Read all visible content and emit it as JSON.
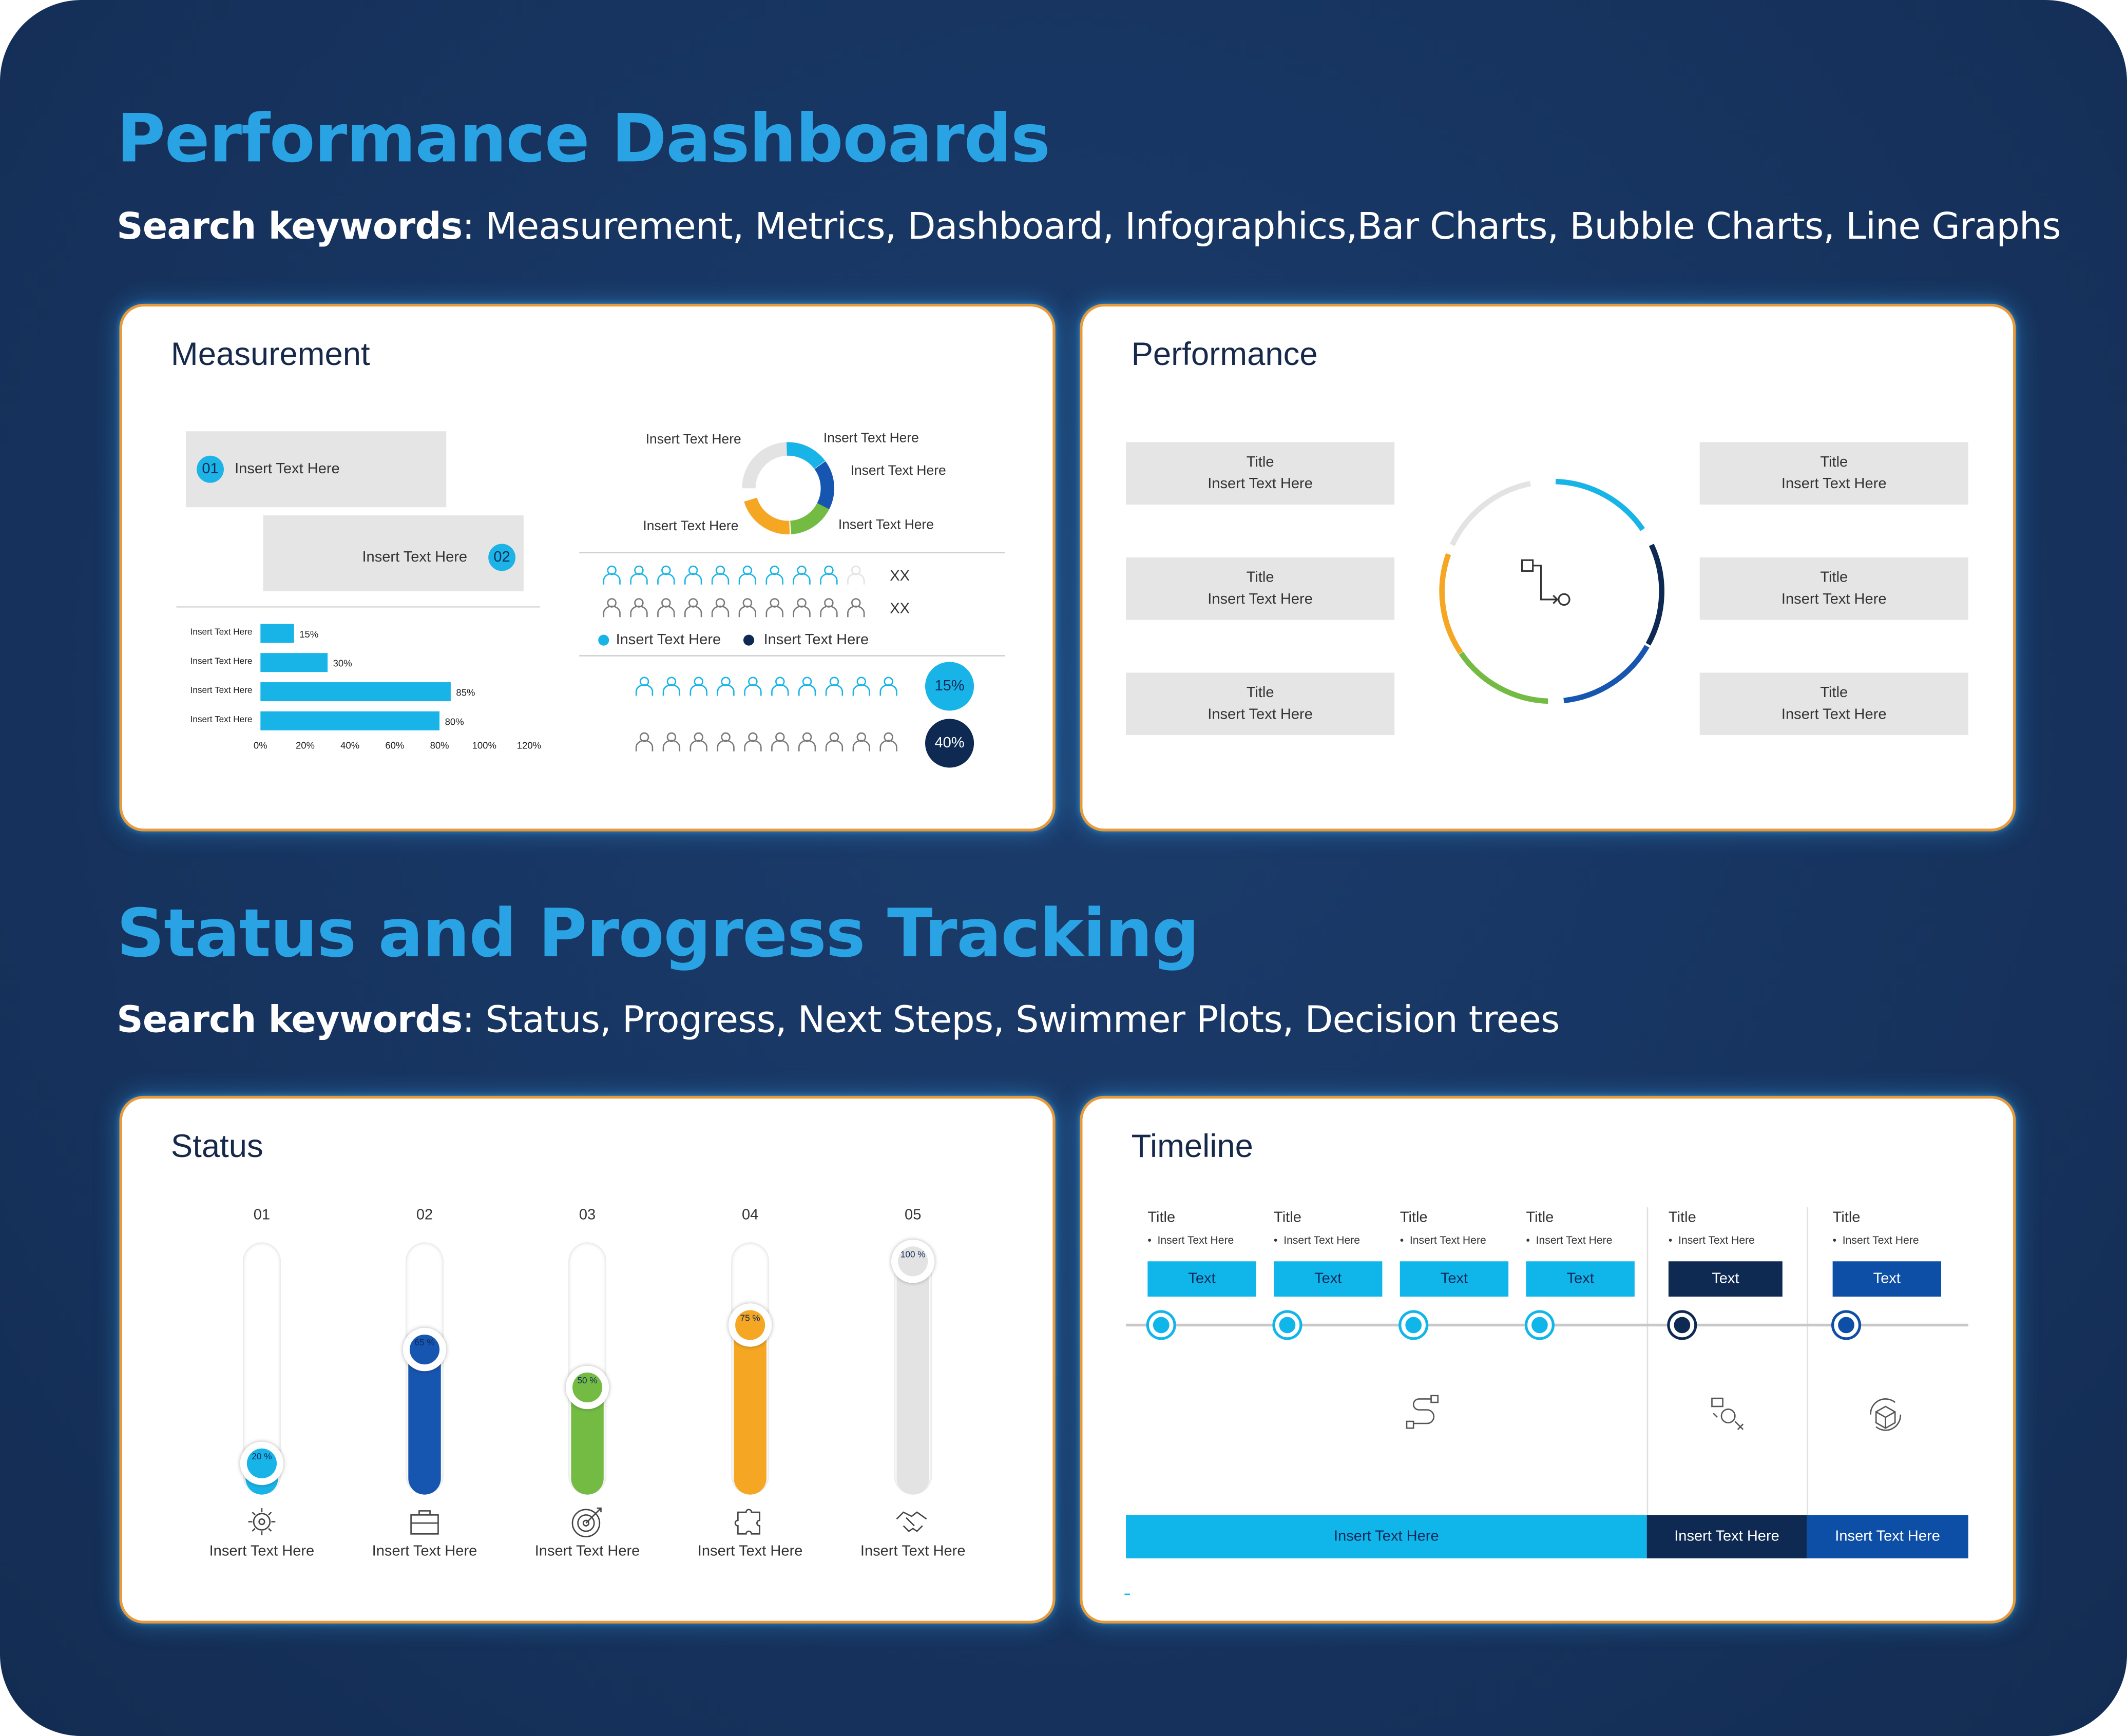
{
  "sections": [
    {
      "title": "Performance Dashboards",
      "keywords_label": "Search keywords",
      "keywords": ": Measurement, Metrics, Dashboard, Infographics,Bar Charts, Bubble Charts, Line Graphs"
    },
    {
      "title": "Status and Progress Tracking",
      "keywords_label": "Search keywords",
      "keywords": ": Status, Progress, Next Steps, Swimmer Plots, Decision trees"
    }
  ],
  "measurement": {
    "title": "Measurement",
    "boxes": [
      {
        "num": "01",
        "text": "Insert Text Here"
      },
      {
        "num": "02",
        "text": "Insert Text Here"
      }
    ],
    "donut_labels": [
      "Insert Text Here",
      "Insert Text Here",
      "Insert Text Here",
      "Insert Text Here",
      "Insert Text Here"
    ],
    "icon_rows": [
      "XX",
      "XX"
    ],
    "legend": [
      "Insert Text Here",
      "Insert Text Here"
    ],
    "bubbles": [
      "15%",
      "40%"
    ],
    "colors": {
      "cyan": "#18b4e8",
      "navy": "#0e2a52",
      "blue": "#1756b0",
      "green": "#74bb44",
      "orange": "#f5a623",
      "gray": "#e3e3e3"
    }
  },
  "chart_data": {
    "type": "bar",
    "orientation": "horizontal",
    "categories": [
      "Insert Text Here",
      "Insert Text Here",
      "Insert Text Here",
      "Insert Text Here"
    ],
    "values": [
      15,
      30,
      85,
      80
    ],
    "labels": [
      "15%",
      "30%",
      "85%",
      "80%"
    ],
    "xlim": [
      0,
      120
    ],
    "xticks": [
      "0%",
      "20%",
      "40%",
      "60%",
      "80%",
      "100%",
      "120%"
    ],
    "title": "",
    "xlabel": "",
    "ylabel": ""
  },
  "performance": {
    "title": "Performance",
    "items": [
      {
        "title": "Title",
        "text": "Insert Text Here"
      },
      {
        "title": "Title",
        "text": "Insert Text Here"
      },
      {
        "title": "Title",
        "text": "Insert Text Here"
      },
      {
        "title": "Title",
        "text": "Insert Text Here"
      },
      {
        "title": "Title",
        "text": "Insert Text Here"
      },
      {
        "title": "Title",
        "text": "Insert Text Here"
      }
    ]
  },
  "status": {
    "title": "Status",
    "columns": [
      {
        "num": "01",
        "pct": "20 %",
        "value": 20,
        "color": "#18b4e8",
        "label": "Insert Text Here",
        "icon": "gear-icon"
      },
      {
        "num": "02",
        "pct": "65 %",
        "value": 65,
        "color": "#1756b0",
        "label": "Insert Text Here",
        "icon": "briefcase-icon"
      },
      {
        "num": "03",
        "pct": "50 %",
        "value": 50,
        "color": "#74bb44",
        "label": "Insert Text Here",
        "icon": "target-icon"
      },
      {
        "num": "04",
        "pct": "75 %",
        "value": 75,
        "color": "#f5a623",
        "label": "Insert Text Here",
        "icon": "puzzle-icon"
      },
      {
        "num": "05",
        "pct": "100 %",
        "value": 100,
        "color": "#e3e3e3",
        "label": "Insert Text Here",
        "icon": "handshake-icon"
      }
    ]
  },
  "timeline": {
    "title": "Timeline",
    "steps": [
      {
        "title": "Title",
        "bullet": "Insert Text Here",
        "box": "Text",
        "color": "#10b6ea"
      },
      {
        "title": "Title",
        "bullet": "Insert Text Here",
        "box": "Text",
        "color": "#10b6ea"
      },
      {
        "title": "Title",
        "bullet": "Insert Text Here",
        "box": "Text",
        "color": "#10b6ea"
      },
      {
        "title": "Title",
        "bullet": "Insert Text Here",
        "box": "Text",
        "color": "#10b6ea"
      },
      {
        "title": "Title",
        "bullet": "Insert Text Here",
        "box": "Text",
        "color": "#0e2a52"
      },
      {
        "title": "Title",
        "bullet": "Insert Text Here",
        "box": "Text",
        "color": "#0d4ea6"
      }
    ],
    "bars": [
      {
        "text": "Insert Text Here",
        "color": "#10b6ea"
      },
      {
        "text": "Insert Text Here",
        "color": "#0e2a52"
      },
      {
        "text": "Insert Text Here",
        "color": "#0d4ea6"
      }
    ]
  }
}
